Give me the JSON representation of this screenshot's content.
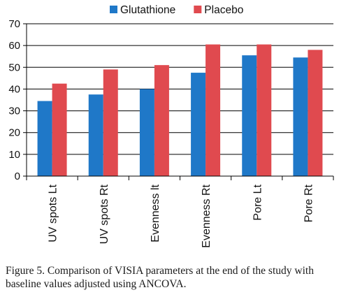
{
  "caption": "Figure 5. Comparison of VISIA parameters at the end of the study with baseline values adjusted using ANCOVA.",
  "chart_data": {
    "type": "bar",
    "categories": [
      "UV spots Lt",
      "UV spots Rt",
      "Evenness lt",
      "Evenness Rt",
      "Pore Lt",
      "Pore Rt"
    ],
    "series": [
      {
        "name": "Glutathione",
        "color": "#1f78c8",
        "values": [
          34.5,
          37.5,
          40,
          47.5,
          55.5,
          54.5
        ]
      },
      {
        "name": "Placebo",
        "color": "#e04a4f",
        "values": [
          42.5,
          49,
          51,
          60.5,
          60.5,
          58
        ]
      }
    ],
    "ylim": [
      0,
      70
    ],
    "yticks": [
      0,
      10,
      20,
      30,
      40,
      50,
      60,
      70
    ],
    "grid": true,
    "legend": "top-center"
  }
}
